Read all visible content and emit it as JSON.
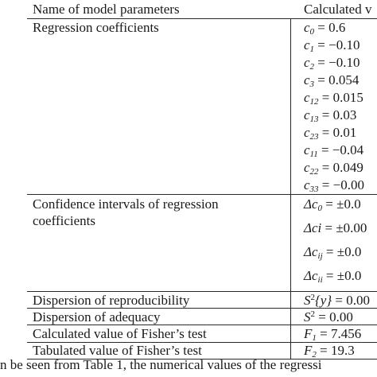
{
  "table": {
    "header": {
      "name": "Name of model parameters",
      "value": "Calculated v"
    },
    "regression": {
      "label": "Regression coefficients",
      "rows": [
        {
          "sym": "c",
          "sub": "0",
          "value": "0.6"
        },
        {
          "sym": "c",
          "sub": "1",
          "value": "−0.10"
        },
        {
          "sym": "c",
          "sub": "2",
          "value": "−0.10"
        },
        {
          "sym": "c",
          "sub": "3",
          "value": "0.054"
        },
        {
          "sym": "c",
          "sub": "12",
          "value": "0.015"
        },
        {
          "sym": "c",
          "sub": "13",
          "value": "0.03"
        },
        {
          "sym": "c",
          "sub": "23",
          "value": "0.01"
        },
        {
          "sym": "c",
          "sub": "11",
          "value": "−0.04"
        },
        {
          "sym": "c",
          "sub": "22",
          "value": "0.049"
        },
        {
          "sym": "c",
          "sub": "33",
          "value": "−0.00"
        }
      ]
    },
    "confidence": {
      "label": "Confidence intervals of regression coefficients",
      "rows": [
        {
          "sym": "Δc",
          "sub": "0",
          "value": "±0.0"
        },
        {
          "sym": "Δci",
          "sub": "",
          "value": "±0.00"
        },
        {
          "sym": "Δc",
          "sub": "ij",
          "value": "±0.0"
        },
        {
          "sym": "Δc",
          "sub": "ii",
          "value": "±0.0"
        }
      ]
    },
    "reproducibility": {
      "label": "Dispersion of reproducibility",
      "sym": "S",
      "sup": "2",
      "arg": "{y}",
      "value": "0.00"
    },
    "adequacy": {
      "label": "Dispersion of adequacy",
      "sym": "S",
      "sup": "2",
      "value": "0.00"
    },
    "fisher_calc": {
      "label": "Calculated value of Fisher’s test",
      "sym": "F",
      "sub": "1",
      "value": "7.456"
    },
    "fisher_tab": {
      "label": "Tabulated value of Fisher’s test",
      "sym": "F",
      "sub": "2",
      "value": "19.3"
    }
  },
  "caption": "n be seen from Table 1, the numerical values of the regressi"
}
